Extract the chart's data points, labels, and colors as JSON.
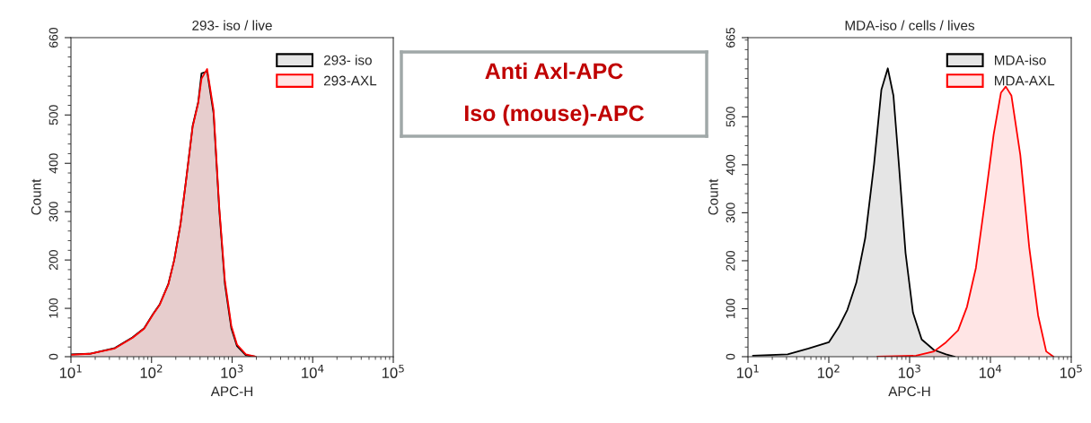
{
  "chart_data": [
    {
      "type": "area",
      "title": "293- iso / live",
      "xlabel": "APC-H",
      "ylabel": "Count",
      "log": "x",
      "legend": "top right",
      "grid": false,
      "xlim": [
        10,
        100000
      ],
      "xticks": [
        {
          "value": 10,
          "label": "10$^{1}$"
        },
        {
          "value": 100,
          "label": "10$^{2}$"
        },
        {
          "value": 1000,
          "label": "10$^{3}$"
        },
        {
          "value": 10000,
          "label": "10$^{4}$"
        },
        {
          "value": 100000,
          "label": "10$^{5}$"
        }
      ],
      "ylim": [
        0,
        660
      ],
      "yticks": [
        0,
        100,
        200,
        300,
        400,
        500,
        660
      ],
      "series": [
        {
          "name": "293- iso",
          "color": "#000000",
          "x": [
            10,
            17,
            35,
            58,
            81,
            105,
            126,
            162,
            191,
            229,
            269,
            324,
            380,
            417,
            490,
            589,
            692,
            813,
            977,
            1150,
            1480,
            1950
          ],
          "values": [
            5,
            6,
            18,
            40,
            59,
            89,
            108,
            151,
            200,
            275,
            367,
            478,
            527,
            586,
            590,
            503,
            305,
            151,
            59,
            22,
            3,
            0
          ]
        },
        {
          "name": "293-AXL",
          "color": "#ff0000",
          "x": [
            10,
            17,
            35,
            58,
            81,
            105,
            126,
            162,
            191,
            229,
            269,
            324,
            380,
            417,
            490,
            589,
            692,
            813,
            977,
            1150,
            1480,
            1950
          ],
          "values": [
            4,
            6,
            17,
            39,
            58,
            88,
            107,
            150,
            199,
            274,
            366,
            476,
            525,
            575,
            595,
            510,
            310,
            158,
            64,
            25,
            5,
            0
          ]
        }
      ]
    },
    {
      "type": "other",
      "annotations": [
        "Anti Axl-APC",
        "Iso (mouse)-APC"
      ]
    },
    {
      "type": "area",
      "title": "MDA-iso / cells / lives",
      "xlabel": "APC-H",
      "ylabel": "Count",
      "log": "x",
      "legend": "top right",
      "grid": false,
      "xlim": [
        10,
        100000
      ],
      "xticks": [
        {
          "value": 10,
          "label": "10$^{1}$"
        },
        {
          "value": 100,
          "label": "10$^{2}$"
        },
        {
          "value": 1000,
          "label": "10$^{3}$"
        },
        {
          "value": 10000,
          "label": "10$^{4}$"
        },
        {
          "value": 100000,
          "label": "10$^{5}$"
        }
      ],
      "ylim": [
        0,
        665
      ],
      "yticks": [
        0,
        100,
        200,
        300,
        400,
        500,
        665
      ],
      "series": [
        {
          "name": "MDA-iso",
          "color": "#000000",
          "x": [
            11.5,
            31,
            56,
            100,
            132,
            170,
            219,
            282,
            363,
            447,
            537,
            631,
            741,
            891,
            1100,
            1410,
            2000,
            2820,
            3630
          ],
          "values": [
            2,
            5,
            17,
            30,
            61,
            98,
            154,
            247,
            401,
            556,
            601,
            544,
            395,
            216,
            92,
            36,
            14,
            5,
            0
          ]
        },
        {
          "name": "MDA-AXL",
          "color": "#ff0000",
          "x": [
            398,
            1200,
            2000,
            2820,
            3980,
            5130,
            6610,
            8510,
            10960,
            13490,
            15490,
            18200,
            23440,
            30200,
            38900,
            49000,
            60300
          ],
          "values": [
            0,
            2,
            11,
            30,
            55,
            104,
            185,
            321,
            463,
            550,
            563,
            544,
            420,
            228,
            86,
            11,
            0
          ]
        }
      ]
    }
  ]
}
